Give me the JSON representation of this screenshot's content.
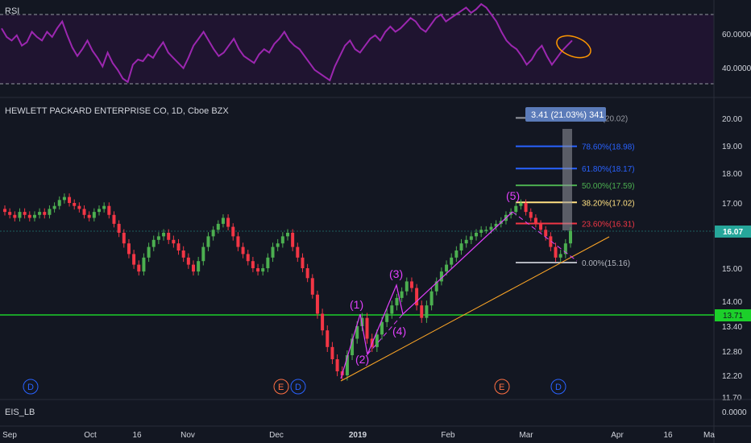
{
  "rsi_pane": {
    "label": "RSI",
    "levels": [
      70,
      30
    ],
    "axis_ticks": [
      "60.0000",
      "40.0000"
    ]
  },
  "price_pane": {
    "title": "HEWLETT PACKARD ENTERPRISE CO, 1D, Cboe BZX",
    "y_ticks": [
      "20.00",
      "19.00",
      "18.00",
      "17.00",
      "16.00",
      "15.00",
      "14.00",
      "13.40",
      "12.80",
      "12.20",
      "11.70"
    ],
    "last_price": "16.07",
    "support_price": "13.71",
    "last_price_color": "#26a69a",
    "support_color": "#1ccf2a"
  },
  "fib": {
    "levels": [
      {
        "label": "100%(20.02)",
        "value": 20.02,
        "color": "#9598a1"
      },
      {
        "label": "78.60%(18.98)",
        "value": 18.98,
        "color": "#2962ff"
      },
      {
        "label": "61.80%(18.17)",
        "value": 18.17,
        "color": "#2962ff"
      },
      {
        "label": "50.00%(17.59)",
        "value": 17.59,
        "color": "#4caf50"
      },
      {
        "label": "38.20%(17.02)",
        "value": 17.02,
        "color": "#ffe082"
      },
      {
        "label": "23.60%(16.31)",
        "value": 16.31,
        "color": "#f23645"
      },
      {
        "label": "0.00%(15.16)",
        "value": 15.16,
        "color": "#b2b5be"
      }
    ],
    "measure_label": "3.41 (21.03%) 341"
  },
  "wave_labels": [
    "(1)",
    "(2)",
    "(3)",
    "(4)",
    "(5)"
  ],
  "event_markers": [
    "D",
    "E",
    "D",
    "E",
    "D"
  ],
  "lower_pane": {
    "label": "EIS_LB",
    "value": "0.0000"
  },
  "x_axis": [
    "Sep",
    "Oct",
    "16",
    "Nov",
    "Dec",
    "2019",
    "Feb",
    "Mar",
    "Apr",
    "16",
    "Ma"
  ],
  "chart_data": {
    "type": "candlestick",
    "title": "HEWLETT PACKARD ENTERPRISE CO, 1D, Cboe BZX",
    "x_range": [
      "Sep",
      "Ma"
    ],
    "y_range": [
      11.7,
      20.5
    ],
    "candles_close": [
      16.7,
      16.6,
      16.5,
      16.7,
      16.6,
      16.5,
      16.6,
      16.7,
      16.6,
      16.8,
      16.9,
      17.1,
      17.2,
      17.0,
      16.9,
      16.8,
      16.6,
      16.5,
      16.7,
      16.8,
      16.9,
      16.6,
      16.3,
      16.0,
      15.7,
      15.4,
      15.1,
      14.9,
      15.3,
      15.6,
      15.8,
      15.9,
      16.0,
      15.8,
      15.7,
      15.5,
      15.3,
      15.1,
      14.9,
      15.2,
      15.6,
      15.9,
      16.1,
      16.3,
      16.5,
      16.2,
      15.9,
      15.6,
      15.4,
      15.2,
      15.0,
      14.9,
      15.0,
      15.3,
      15.6,
      15.7,
      15.9,
      16.0,
      15.6,
      15.3,
      15.0,
      14.7,
      14.2,
      13.7,
      13.3,
      12.9,
      12.6,
      12.3,
      12.2,
      12.7,
      13.1,
      13.4,
      13.6,
      13.1,
      12.9,
      13.2,
      13.5,
      13.7,
      13.9,
      14.1,
      14.3,
      14.6,
      14.4,
      13.9,
      13.6,
      13.9,
      14.3,
      14.6,
      14.9,
      15.1,
      15.3,
      15.5,
      15.7,
      15.8,
      15.9,
      16.0,
      16.1,
      16.1,
      16.2,
      16.3,
      16.4,
      16.6,
      16.7,
      16.9,
      17.0,
      16.7,
      16.5,
      16.3,
      16.1,
      15.9,
      15.6,
      15.3,
      15.4,
      15.7,
      16.07
    ],
    "fib_levels": [
      20.02,
      18.98,
      18.17,
      17.59,
      17.02,
      16.31,
      15.16
    ],
    "horizontal_lines": [
      16.07,
      13.71
    ],
    "rsi_levels": [
      70,
      30
    ]
  }
}
